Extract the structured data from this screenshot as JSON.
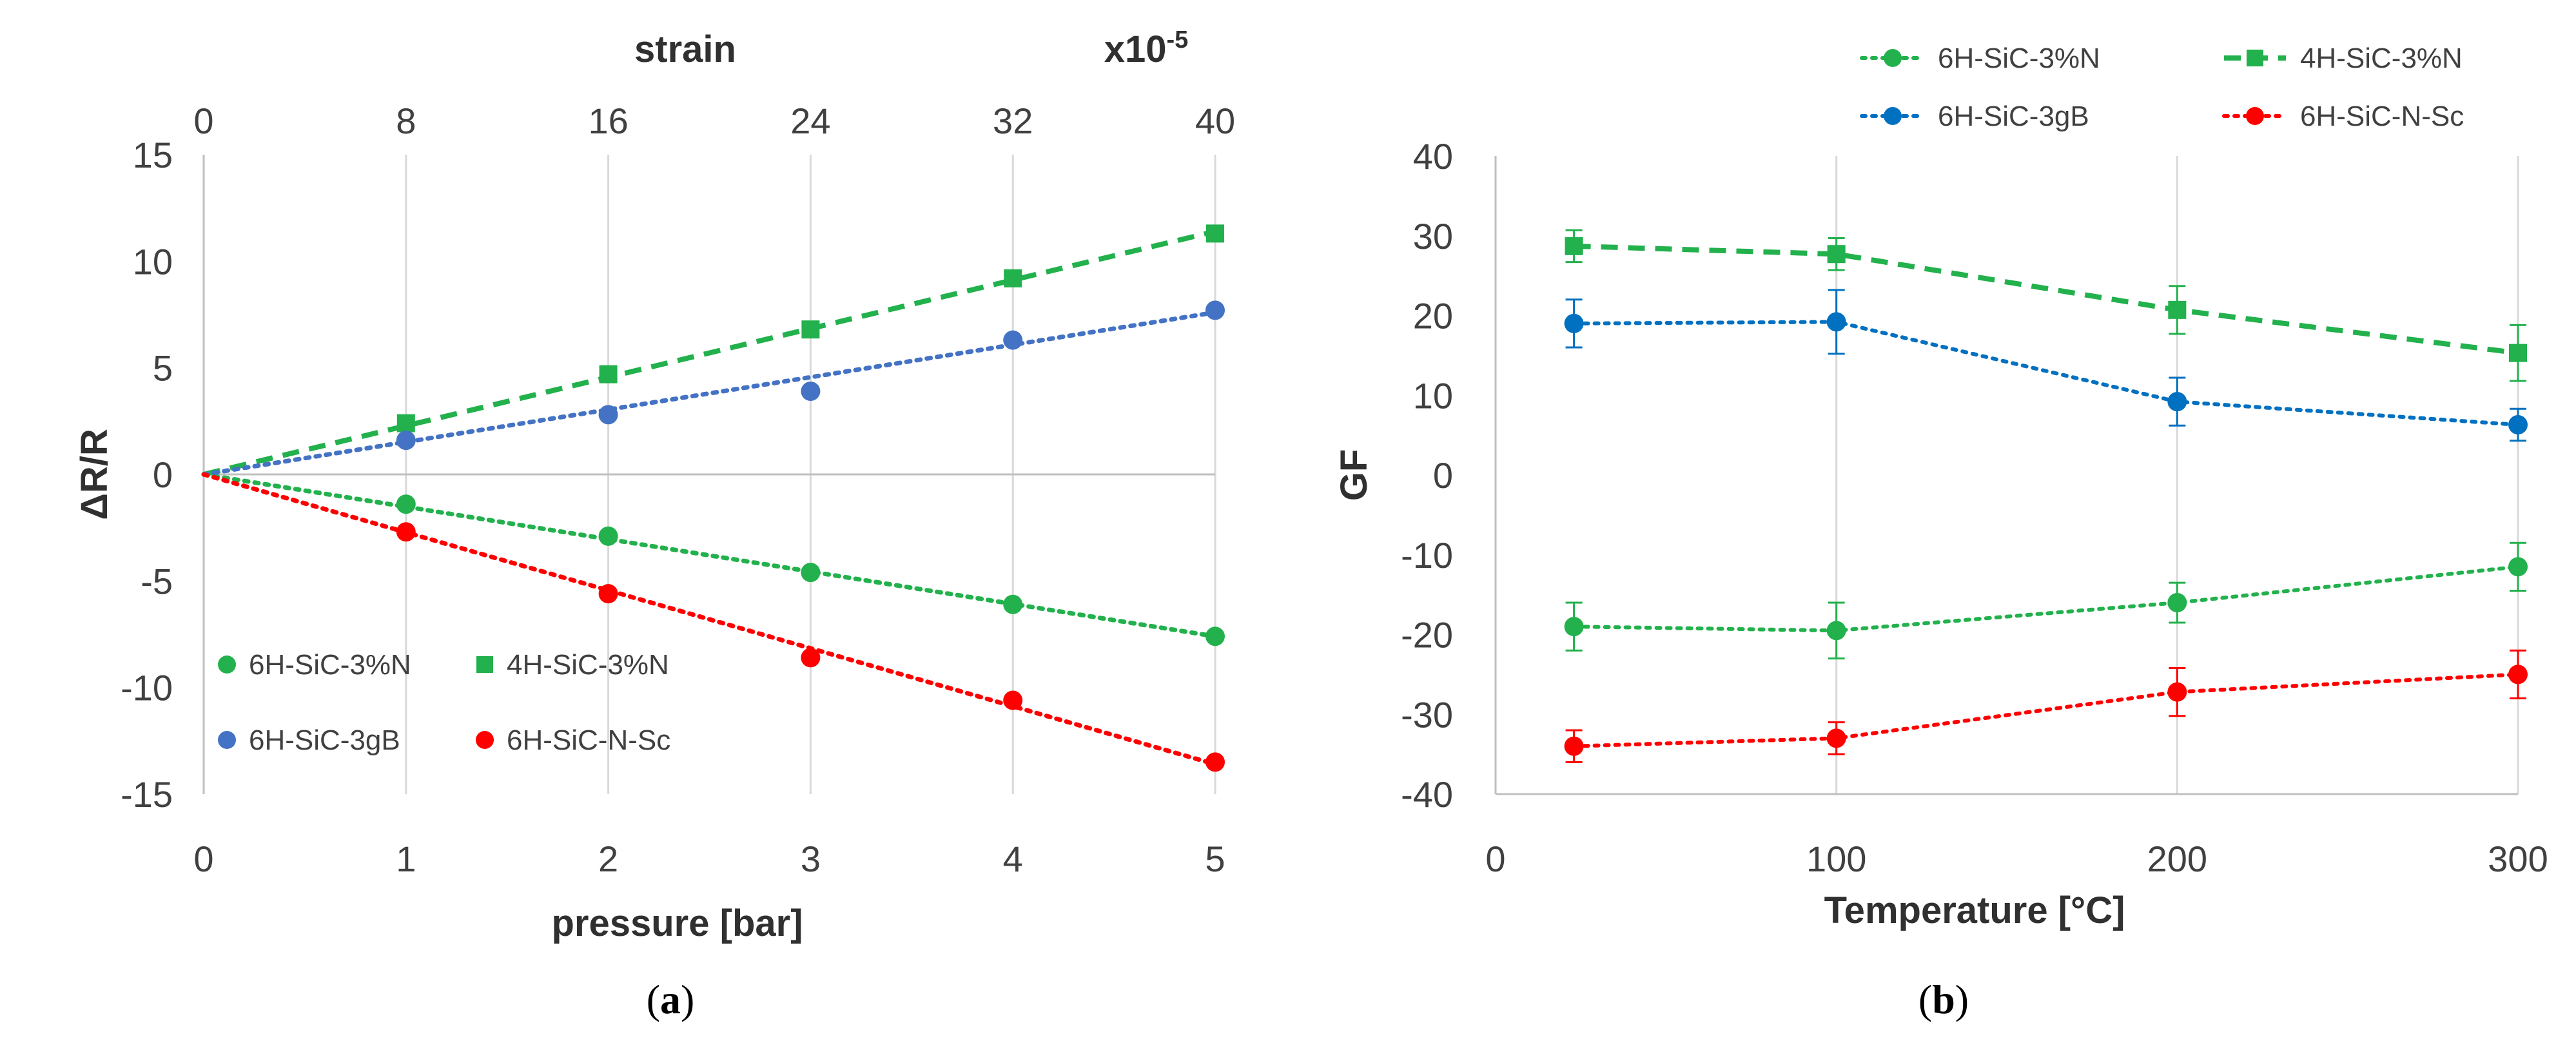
{
  "chart_data": [
    {
      "type": "line",
      "panel": "a",
      "caption_letter": "a",
      "xlabel": "pressure [bar]",
      "ylabel": "ΔR/R",
      "top_axis_label": "strain",
      "top_axis_multiplier_base": "x10",
      "top_axis_multiplier_exp": "-5",
      "xlim": [
        0,
        5
      ],
      "ylim": [
        -15,
        15
      ],
      "x_ticks": [
        0,
        1,
        2,
        3,
        4,
        5
      ],
      "y_ticks": [
        -15,
        -10,
        -5,
        0,
        5,
        10,
        15
      ],
      "y_tick_labels": [
        "-15",
        "-10",
        "-5",
        "0",
        "5",
        "10",
        "15"
      ],
      "top_ticks": [
        0,
        8,
        16,
        24,
        32,
        40
      ],
      "grid": "vertical",
      "legend_position": "lower-left",
      "series": [
        {
          "name": "6H-SiC-3%N",
          "color": "#22b14c",
          "marker": "circle",
          "line": "dotted",
          "x": [
            1,
            2,
            3,
            4,
            5
          ],
          "values": [
            -1.4,
            -2.9,
            -4.6,
            -6.1,
            -7.6
          ],
          "fit": [
            [
              0,
              0
            ],
            [
              5,
              -7.6
            ]
          ]
        },
        {
          "name": "4H-SiC-3%N",
          "color": "#22b14c",
          "marker": "square",
          "line": "dashed",
          "x": [
            1,
            2,
            3,
            4,
            5
          ],
          "values": [
            2.4,
            4.7,
            6.8,
            9.2,
            11.3
          ],
          "fit": [
            [
              0,
              0
            ],
            [
              5,
              11.4
            ]
          ]
        },
        {
          "name": "6H-SiC-3gB",
          "color": "#4472c4",
          "marker": "circle",
          "line": "dotted",
          "x": [
            1,
            2,
            3,
            4,
            5
          ],
          "values": [
            1.6,
            2.8,
            3.9,
            6.3,
            7.7
          ],
          "fit": [
            [
              0,
              0
            ],
            [
              5,
              7.6
            ]
          ]
        },
        {
          "name": "6H-SiC-N-Sc",
          "color": "#ff0000",
          "marker": "circle",
          "line": "dotted",
          "x": [
            1,
            2,
            3,
            4,
            5
          ],
          "values": [
            -2.7,
            -5.6,
            -8.6,
            -10.6,
            -13.5
          ],
          "fit": [
            [
              0,
              0
            ],
            [
              5,
              -13.6
            ]
          ]
        }
      ]
    },
    {
      "type": "line",
      "panel": "b",
      "caption_letter": "b",
      "xlabel": "Temperature [°C]",
      "ylabel": "GF",
      "xlim": [
        0,
        300
      ],
      "ylim": [
        -40,
        40
      ],
      "x_ticks": [
        0,
        100,
        200,
        300
      ],
      "y_ticks": [
        -40,
        -30,
        -20,
        -10,
        0,
        10,
        20,
        30,
        40
      ],
      "y_tick_labels": [
        "-40",
        "-30",
        "-20",
        "-10",
        "0",
        "10",
        "20",
        "30",
        "40"
      ],
      "grid": "vertical",
      "legend_position": "top",
      "error_bars": true,
      "series": [
        {
          "name": "6H-SiC-3%N",
          "color": "#22b14c",
          "marker": "circle",
          "line": "dotted",
          "x": [
            23,
            100,
            200,
            300
          ],
          "values": [
            -19,
            -19.5,
            -16,
            -11.5
          ],
          "errors": [
            3,
            3.5,
            2.5,
            3
          ]
        },
        {
          "name": "4H-SiC-3%N",
          "color": "#22b14c",
          "marker": "square",
          "line": "dashed",
          "x": [
            23,
            100,
            200,
            300
          ],
          "values": [
            28.7,
            27.7,
            20.7,
            15.3
          ],
          "errors": [
            2,
            2,
            3,
            3.5
          ]
        },
        {
          "name": "6H-SiC-3gB",
          "color": "#0070c0",
          "marker": "circle",
          "line": "dotted",
          "x": [
            23,
            100,
            200,
            300
          ],
          "values": [
            19,
            19.2,
            9.2,
            6.3
          ],
          "errors": [
            3,
            4,
            3,
            2
          ]
        },
        {
          "name": "6H-SiC-N-Sc",
          "color": "#ff0000",
          "marker": "circle",
          "line": "dotted",
          "x": [
            23,
            100,
            200,
            300
          ],
          "values": [
            -34,
            -33,
            -27.2,
            -25
          ],
          "errors": [
            2,
            2,
            3,
            3
          ]
        }
      ]
    }
  ]
}
